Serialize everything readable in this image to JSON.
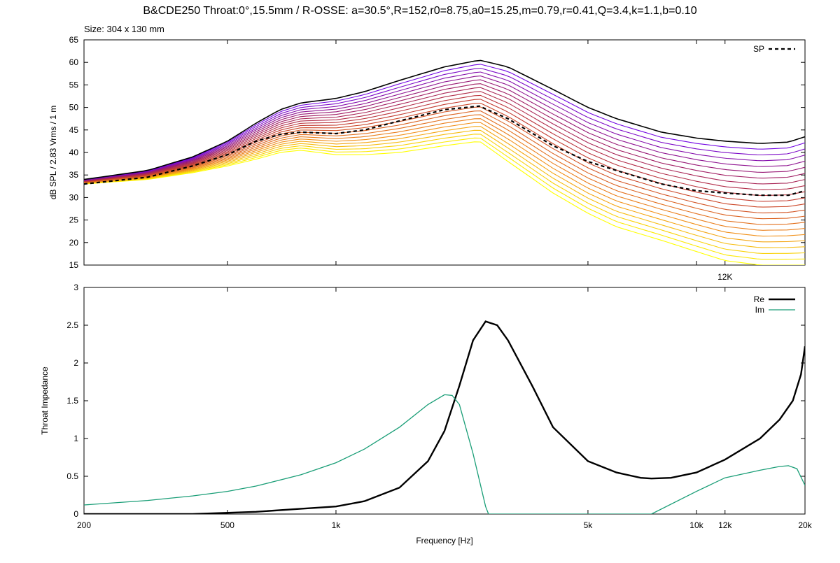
{
  "title": "B&CDE250 Throat:0°,15.5mm / R-OSSE: a=30.5°,R=152,r0=8.75,a0=15.25,m=0.79,r=0.41,Q=3.4,k=1.1,b=0.10",
  "size_label": "Size: 304 x 130 mm",
  "colors": {
    "sp": "#000000",
    "re": "#000000",
    "im": "#1a9e77",
    "hot": "#ffff00",
    "cold": "#6a00ff"
  },
  "chart_data": [
    {
      "type": "line",
      "name": "spl",
      "ylabel": "dB SPL / 2.83 Vrms / 1 m",
      "xlim": [
        200,
        20000
      ],
      "ylim": [
        15,
        65
      ],
      "x_scale": "log",
      "yticks": [
        15,
        20,
        25,
        30,
        35,
        40,
        45,
        50,
        55,
        60,
        65
      ],
      "xtick_label": "12K",
      "xtick_value": 12000,
      "legend": [
        {
          "label": "SP",
          "style": "dashed"
        }
      ],
      "legend_position": "top-right",
      "x": [
        200,
        300,
        400,
        500,
        600,
        700,
        800,
        1000,
        1200,
        1500,
        2000,
        2500,
        3000,
        4000,
        5000,
        6000,
        8000,
        10000,
        12000,
        15000,
        18000,
        20000
      ],
      "top_curve": [
        34,
        36,
        39,
        42.5,
        46.5,
        49.5,
        51,
        52,
        53.5,
        56,
        59,
        60.5,
        59,
        54,
        50,
        47.5,
        44.5,
        43.2,
        42.5,
        42,
        42.3,
        43.5
      ],
      "bottom_curve": [
        33,
        34,
        35.5,
        37,
        38.5,
        40,
        40.5,
        39.5,
        39.5,
        40,
        41.5,
        42.5,
        38,
        31,
        26.5,
        23.5,
        20.5,
        18,
        16,
        15,
        15,
        15
      ],
      "curve_count": 22,
      "series": [
        {
          "name": "SP",
          "values": [
            33,
            34.5,
            37,
            39.5,
            42.5,
            44,
            44.5,
            44.2,
            45,
            47,
            49.5,
            50.3,
            47.5,
            41.5,
            38,
            36,
            33,
            31.5,
            31,
            30.5,
            30.5,
            31.5
          ]
        }
      ]
    },
    {
      "type": "line",
      "name": "impedance",
      "xlabel": "Frequency [Hz]",
      "ylabel": "Throat Impedance",
      "xlim": [
        200,
        20000
      ],
      "ylim": [
        0,
        3
      ],
      "x_scale": "log",
      "yticks": [
        "0",
        "0.5",
        "1",
        "1.5",
        "2",
        "2.5",
        "3"
      ],
      "xticks": [
        {
          "label": "200",
          "value": 200
        },
        {
          "label": "500",
          "value": 500
        },
        {
          "label": "1k",
          "value": 1000
        },
        {
          "label": "5k",
          "value": 5000
        },
        {
          "label": "10k",
          "value": 10000
        },
        {
          "label": "12k",
          "value": 12000
        },
        {
          "label": "20k",
          "value": 20000
        }
      ],
      "legend_position": "top-right",
      "series": [
        {
          "name": "Re",
          "x": [
            200,
            400,
            600,
            800,
            1000,
            1200,
            1500,
            1800,
            2000,
            2200,
            2400,
            2600,
            2800,
            3000,
            3500,
            4000,
            5000,
            6000,
            7000,
            7500,
            8500,
            10000,
            12000,
            15000,
            17000,
            18500,
            19500,
            20000
          ],
          "values": [
            0,
            0,
            0.03,
            0.07,
            0.1,
            0.17,
            0.35,
            0.7,
            1.1,
            1.7,
            2.3,
            2.55,
            2.5,
            2.3,
            1.7,
            1.15,
            0.7,
            0.55,
            0.48,
            0.47,
            0.48,
            0.55,
            0.72,
            1.0,
            1.25,
            1.5,
            1.85,
            2.22
          ]
        },
        {
          "name": "Im",
          "x": [
            200,
            300,
            400,
            500,
            600,
            800,
            1000,
            1200,
            1500,
            1800,
            2000,
            2100,
            2200,
            2400,
            2600,
            2650,
            7500,
            10000,
            12000,
            15000,
            17000,
            18000,
            19000,
            20000
          ],
          "values": [
            0.12,
            0.18,
            0.24,
            0.3,
            0.37,
            0.52,
            0.68,
            0.86,
            1.15,
            1.45,
            1.58,
            1.57,
            1.45,
            0.8,
            0.1,
            0,
            0,
            0.3,
            0.48,
            0.58,
            0.63,
            0.64,
            0.6,
            0.38
          ]
        }
      ]
    }
  ]
}
